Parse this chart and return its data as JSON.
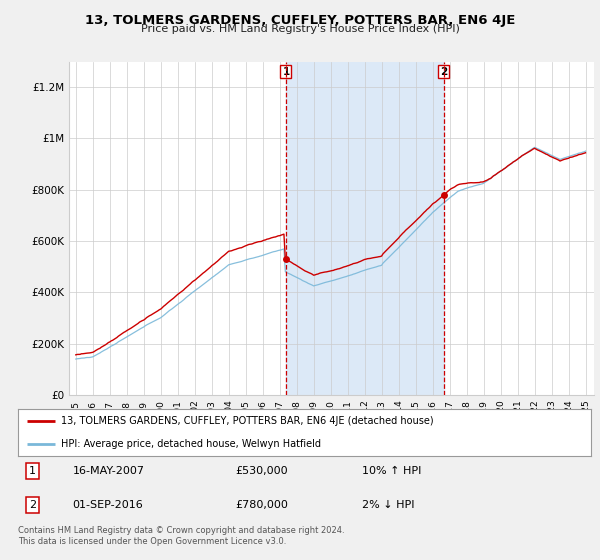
{
  "title": "13, TOLMERS GARDENS, CUFFLEY, POTTERS BAR, EN6 4JE",
  "subtitle": "Price paid vs. HM Land Registry's House Price Index (HPI)",
  "legend_line1": "13, TOLMERS GARDENS, CUFFLEY, POTTERS BAR, EN6 4JE (detached house)",
  "legend_line2": "HPI: Average price, detached house, Welwyn Hatfield",
  "annotation1_label": "1",
  "annotation1_date": "16-MAY-2007",
  "annotation1_price": "£530,000",
  "annotation1_hpi": "10% ↑ HPI",
  "annotation2_label": "2",
  "annotation2_date": "01-SEP-2016",
  "annotation2_price": "£780,000",
  "annotation2_hpi": "2% ↓ HPI",
  "footer": "Contains HM Land Registry data © Crown copyright and database right 2024.\nThis data is licensed under the Open Government Licence v3.0.",
  "sale1_x": 2007.37,
  "sale1_y": 530000,
  "sale2_x": 2016.67,
  "sale2_y": 780000,
  "vline1_x": 2007.37,
  "vline2_x": 2016.67,
  "highlight_color": "#dce9f7",
  "vline_color": "#cc0000",
  "hpi_color": "#7ab8d9",
  "sale_color": "#cc0000",
  "background_color": "#f0f0f0",
  "plot_bg_color": "#ffffff",
  "grid_color": "#cccccc",
  "ylim": [
    0,
    1300000
  ],
  "xlim_start": 1994.6,
  "xlim_end": 2025.5,
  "yticks": [
    0,
    200000,
    400000,
    600000,
    800000,
    1000000,
    1200000
  ],
  "ytick_labels": [
    "£0",
    "£200K",
    "£400K",
    "£600K",
    "£800K",
    "£1M",
    "£1.2M"
  ],
  "xticks": [
    1995,
    1996,
    1997,
    1998,
    1999,
    2000,
    2001,
    2002,
    2003,
    2004,
    2005,
    2006,
    2007,
    2008,
    2009,
    2010,
    2011,
    2012,
    2013,
    2014,
    2015,
    2016,
    2017,
    2018,
    2019,
    2020,
    2021,
    2022,
    2023,
    2024,
    2025
  ]
}
